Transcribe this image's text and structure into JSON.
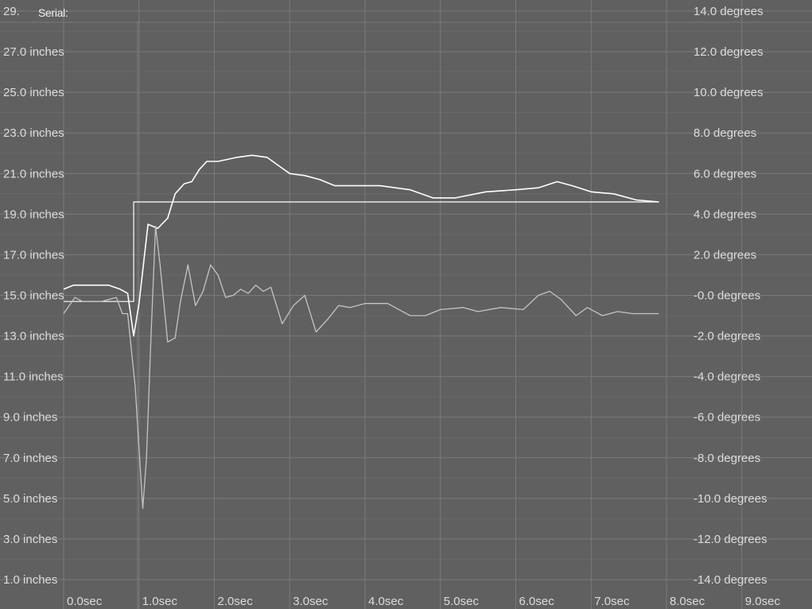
{
  "window": {
    "serial_label": "Serial:"
  },
  "colors": {
    "background": "#606060",
    "grid": "#7a7a7a",
    "text": "#dcdcdc",
    "primary_line": "#ffffff",
    "secondary_line": "#c4c4c4"
  },
  "chart_data": {
    "type": "line",
    "grid": true,
    "x_ticks": [
      "0.0sec",
      "1.0sec",
      "2.0sec",
      "3.0sec",
      "4.0sec",
      "5.0sec",
      "6.0sec",
      "7.0sec",
      "8.0sec",
      "9.0sec"
    ],
    "xlim": [
      -0.25,
      9.5
    ],
    "y_left_ticks": [
      "29.",
      "27.0 inches",
      "25.0 inches",
      "23.0 inches",
      "21.0 inches",
      "19.0 inches",
      "17.0 inches",
      "15.0 inches",
      "13.0 inches",
      "11.0 inches",
      "9.0 inches",
      "7.0 inches",
      "5.0 inches",
      "3.0 inches",
      "1.0 inches"
    ],
    "y_left_lim": [
      1,
      29
    ],
    "y_right_ticks": [
      "14.0 degrees",
      "12.0 degrees",
      "10.0 degrees",
      "8.0 degrees",
      "6.0 degrees",
      "4.0 degrees",
      "2.0 degrees",
      "-0.0 degrees",
      "-2.0 degrees",
      "-4.0 degrees",
      "-6.0 degrees",
      "-8.0 degrees",
      "-10.0 degrees",
      "-12.0 degrees",
      "-14.0 degrees"
    ],
    "y_right_lim": [
      -14,
      14
    ],
    "series": [
      {
        "axis": "left",
        "style": "primary",
        "x": [
          0.0,
          0.13,
          0.6,
          0.75,
          0.85,
          0.93,
          1.0,
          1.12,
          1.25,
          1.38,
          1.48,
          1.6,
          1.7,
          1.8,
          1.9,
          2.05,
          2.3,
          2.5,
          2.7,
          2.85,
          3.0,
          3.2,
          3.4,
          3.6,
          3.8,
          4.2,
          4.6,
          4.9,
          5.2,
          5.6,
          6.0,
          6.3,
          6.55,
          6.75,
          7.0,
          7.3,
          7.6,
          7.9
        ],
        "y": [
          15.3,
          15.5,
          15.5,
          15.3,
          15.1,
          13.0,
          14.6,
          18.5,
          18.3,
          18.8,
          20.0,
          20.5,
          20.6,
          21.2,
          21.6,
          21.6,
          21.8,
          21.9,
          21.8,
          21.4,
          21.0,
          20.9,
          20.7,
          20.4,
          20.4,
          20.4,
          20.2,
          19.8,
          19.8,
          20.1,
          20.2,
          20.3,
          20.6,
          20.4,
          20.1,
          20.0,
          19.7,
          19.6
        ]
      },
      {
        "axis": "left",
        "style": "primary",
        "x": [
          0.0,
          0.93,
          0.93,
          7.9
        ],
        "y": [
          14.7,
          14.7,
          19.6,
          19.6
        ]
      },
      {
        "axis": "right",
        "style": "secondary",
        "x": [
          0.0,
          0.15,
          0.25,
          0.5,
          0.7,
          0.78,
          0.85,
          0.95,
          1.05,
          1.1,
          1.16,
          1.22,
          1.28,
          1.38,
          1.48,
          1.55,
          1.65,
          1.75,
          1.85,
          1.95,
          2.05,
          2.15,
          2.25,
          2.35,
          2.45,
          2.55,
          2.65,
          2.75,
          2.9,
          3.05,
          3.2,
          3.35,
          3.5,
          3.65,
          3.8,
          4.0,
          4.3,
          4.6,
          4.8,
          5.0,
          5.3,
          5.5,
          5.8,
          6.1,
          6.3,
          6.45,
          6.6,
          6.8,
          6.95,
          7.15,
          7.35,
          7.55,
          7.9
        ],
        "y": [
          -0.9,
          -0.1,
          -0.3,
          -0.3,
          -0.1,
          -0.9,
          -0.9,
          -4.5,
          -10.5,
          -8.0,
          -2.0,
          3.4,
          1.5,
          -2.3,
          -2.1,
          -0.3,
          1.5,
          -0.5,
          0.2,
          1.5,
          1.0,
          -0.1,
          0.0,
          0.3,
          0.1,
          0.5,
          0.2,
          0.4,
          -1.4,
          -0.5,
          0.0,
          -1.8,
          -1.2,
          -0.5,
          -0.6,
          -0.4,
          -0.4,
          -1.0,
          -1.0,
          -0.7,
          -0.6,
          -0.8,
          -0.6,
          -0.7,
          0.0,
          0.2,
          -0.2,
          -1.0,
          -0.6,
          -1.0,
          -0.8,
          -0.9,
          -0.9
        ]
      }
    ]
  }
}
